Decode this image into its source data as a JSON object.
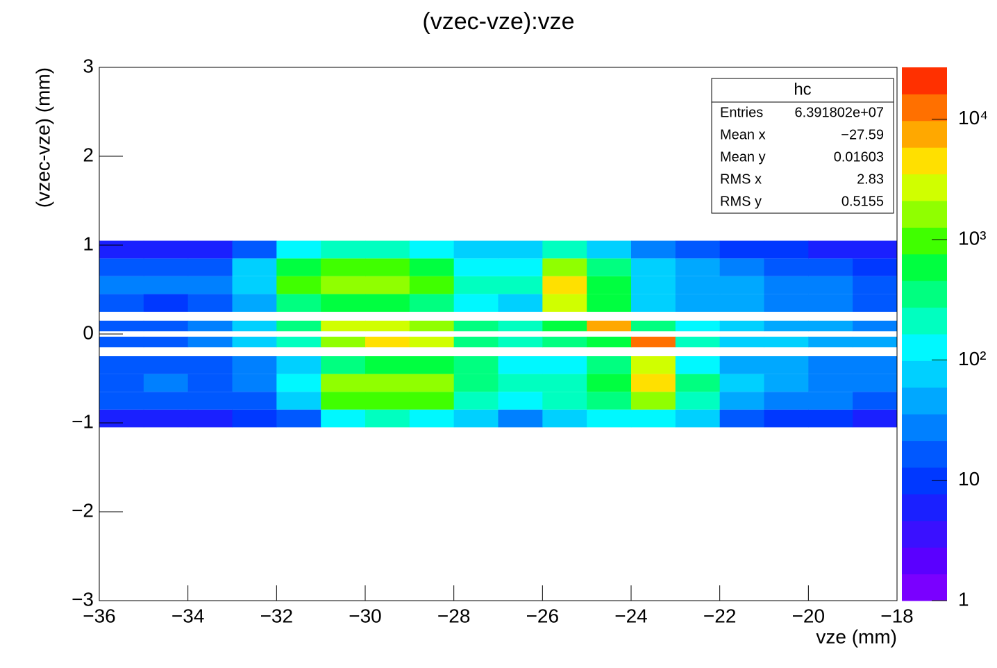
{
  "chart_data": {
    "type": "heatmap",
    "title": "(vzec-vze):vze",
    "x_label": "vze (mm)",
    "y_label": "(vzec-vze) (mm)",
    "xlim": [
      -36,
      -18
    ],
    "xticks": [
      {
        "value": -36,
        "label": "−36"
      },
      {
        "value": -34,
        "label": "−34"
      },
      {
        "value": -32,
        "label": "−32"
      },
      {
        "value": -30,
        "label": "−30"
      },
      {
        "value": -28,
        "label": "−28"
      },
      {
        "value": -26,
        "label": "−26"
      },
      {
        "value": -24,
        "label": "−24"
      },
      {
        "value": -22,
        "label": "−22"
      },
      {
        "value": -20,
        "label": "−20"
      },
      {
        "value": -18,
        "label": "−18"
      }
    ],
    "ylim": [
      -3,
      3
    ],
    "yticks": [
      {
        "value": -3,
        "label": "−3"
      },
      {
        "value": -2,
        "label": "−2"
      },
      {
        "value": -1,
        "label": "−1"
      },
      0,
      1,
      2,
      3
    ],
    "zlim": [
      1,
      27000
    ],
    "zlog": true,
    "zticks": [
      1,
      10,
      {
        "value": 100,
        "label": "10²"
      },
      {
        "value": 1000,
        "label": "10³"
      },
      {
        "value": 10000,
        "label": "10⁴"
      }
    ],
    "palette": [
      "#7a00ff",
      "#5a00ff",
      "#3a10ff",
      "#1a20ff",
      "#0038ff",
      "#0058ff",
      "#0080ff",
      "#00a8ff",
      "#00d0ff",
      "#00f8ff",
      "#00ffc0",
      "#00ff80",
      "#00ff40",
      "#40ff00",
      "#90ff00",
      "#d0ff00",
      "#ffe000",
      "#ffa800",
      "#ff7000",
      "#ff3000"
    ],
    "xbins": [
      -36,
      -35,
      -34,
      -33,
      -32,
      -31,
      -30,
      -29,
      -28,
      -27,
      -26,
      -25,
      -24,
      -23,
      -22,
      -21,
      -20,
      -19,
      -18
    ],
    "ybins": [
      -1.05,
      -0.85,
      -0.65,
      -0.45,
      -0.25,
      -0.15,
      -0.03,
      0.03,
      0.15,
      0.25,
      0.45,
      0.65,
      0.85,
      1.05
    ],
    "z": [
      [
        5,
        5,
        5,
        8,
        20,
        150,
        200,
        150,
        60,
        30,
        80,
        100,
        150,
        80,
        20,
        10,
        8,
        6
      ],
      [
        15,
        20,
        15,
        20,
        60,
        800,
        1200,
        900,
        250,
        150,
        200,
        300,
        1500,
        200,
        50,
        30,
        25,
        20
      ],
      [
        20,
        30,
        20,
        30,
        100,
        1500,
        2000,
        1500,
        400,
        250,
        200,
        600,
        5000,
        300,
        60,
        40,
        30,
        25
      ],
      [
        15,
        15,
        15,
        30,
        80,
        300,
        600,
        600,
        300,
        150,
        100,
        400,
        3000,
        150,
        50,
        40,
        30,
        25
      ],
      [
        null,
        null,
        null,
        null,
        null,
        null,
        null,
        null,
        null,
        null,
        null,
        null,
        null,
        null,
        null,
        null,
        null,
        null
      ],
      [
        20,
        20,
        30,
        60,
        200,
        2000,
        4000,
        3000,
        400,
        200,
        300,
        600,
        12000,
        200,
        80,
        60,
        50,
        40
      ],
      [
        null,
        null,
        null,
        null,
        null,
        null,
        null,
        null,
        null,
        null,
        null,
        null,
        null,
        null,
        null,
        null,
        null,
        null
      ],
      [
        20,
        20,
        30,
        80,
        400,
        3000,
        3000,
        1500,
        300,
        200,
        500,
        8000,
        300,
        100,
        60,
        50,
        40,
        30
      ],
      [
        null,
        null,
        null,
        null,
        null,
        null,
        null,
        null,
        null,
        null,
        null,
        null,
        null,
        null,
        null,
        null,
        null,
        null
      ],
      [
        15,
        12,
        15,
        40,
        300,
        600,
        600,
        300,
        150,
        80,
        3000,
        600,
        80,
        50,
        40,
        30,
        25,
        20
      ],
      [
        30,
        25,
        30,
        80,
        800,
        2000,
        2000,
        800,
        200,
        250,
        5000,
        500,
        80,
        50,
        40,
        30,
        25,
        20
      ],
      [
        15,
        15,
        20,
        60,
        600,
        1200,
        1200,
        600,
        150,
        150,
        1500,
        400,
        60,
        40,
        30,
        20,
        15,
        10
      ],
      [
        5,
        5,
        6,
        20,
        150,
        250,
        250,
        150,
        60,
        80,
        200,
        80,
        25,
        15,
        10,
        8,
        6,
        5
      ]
    ],
    "stats": {
      "title": "hc",
      "rows": [
        {
          "label": "Entries",
          "value": "6.391802e+07"
        },
        {
          "label": "Mean x",
          "value": "−27.59"
        },
        {
          "label": "Mean y",
          "value": "0.01603"
        },
        {
          "label": "RMS x",
          "value": "2.83"
        },
        {
          "label": "RMS y",
          "value": "0.5155"
        }
      ]
    }
  }
}
